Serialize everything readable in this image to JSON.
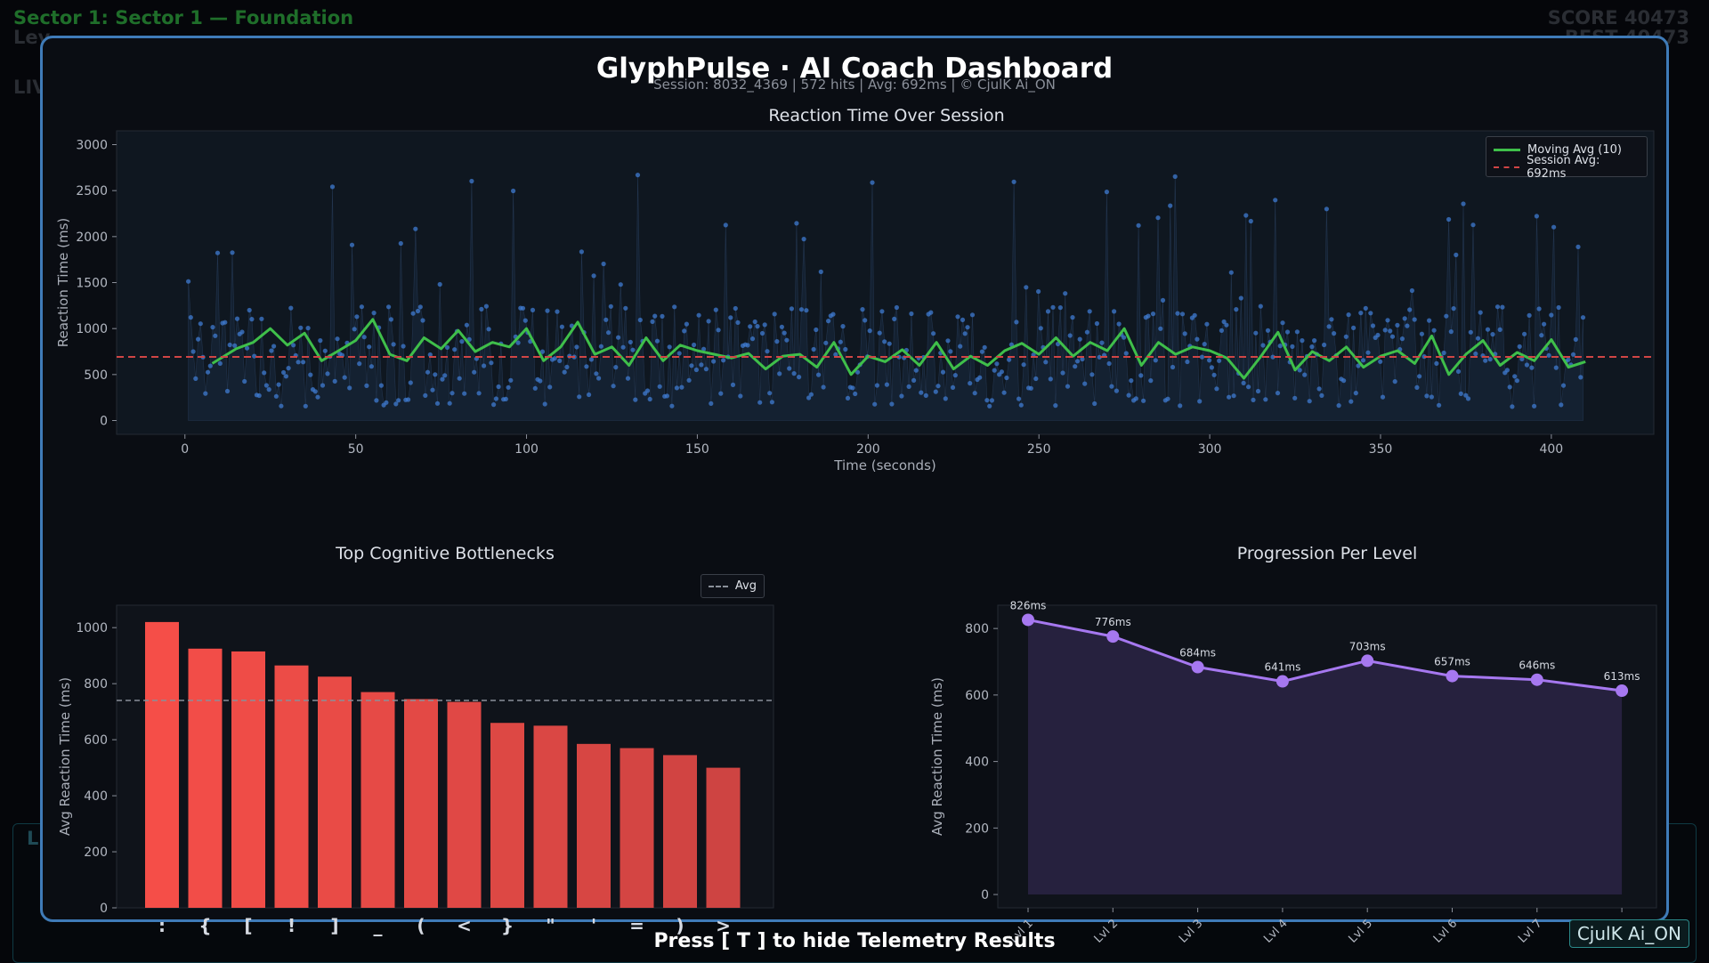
{
  "background": {
    "sector_title": "Sector 1: Sector 1 — Foundation",
    "score": "SCORE 40473",
    "best": "BEST 40473"
  },
  "dashboard": {
    "title": "GlyphPulse · AI Coach Dashboard",
    "subtitle": "Session: 8032_4369  |  572 hits  |  Avg: 692ms  |  © CjulK Ai_ON"
  },
  "colors": {
    "moving_avg": "#3fbf4a",
    "session_avg": "#d04545",
    "scatter": "#3f7bd0",
    "bars": "#e04a44",
    "progression": "#a678f0",
    "modal_border": "#3f7bb8"
  },
  "chart_data": [
    {
      "type": "scatter",
      "title": "Reaction Time Over Session",
      "xlabel": "Time (seconds)",
      "ylabel": "Reaction Time (ms)",
      "xlim": [
        -20,
        430
      ],
      "ylim": [
        -150,
        3150
      ],
      "xticks": [
        0,
        50,
        100,
        150,
        200,
        250,
        300,
        350,
        400
      ],
      "yticks": [
        0,
        500,
        1000,
        1500,
        2000,
        2500,
        3000
      ],
      "legend": "top-right",
      "hits": 572,
      "session_avg_ms": 692,
      "series": [
        {
          "name": "Moving Avg (10)",
          "kind": "line",
          "x": [
            8,
            15,
            20,
            25,
            30,
            35,
            40,
            45,
            50,
            55,
            60,
            65,
            70,
            75,
            80,
            85,
            90,
            95,
            100,
            105,
            110,
            115,
            120,
            125,
            130,
            135,
            140,
            145,
            150,
            155,
            160,
            165,
            170,
            175,
            180,
            185,
            190,
            195,
            200,
            205,
            210,
            215,
            220,
            225,
            230,
            235,
            240,
            245,
            250,
            255,
            260,
            265,
            270,
            275,
            280,
            285,
            290,
            295,
            300,
            305,
            310,
            315,
            320,
            325,
            330,
            335,
            340,
            345,
            350,
            355,
            360,
            365,
            370,
            375,
            380,
            385,
            390,
            395,
            400,
            405,
            410
          ],
          "y": [
            620,
            780,
            850,
            1000,
            820,
            950,
            650,
            760,
            870,
            1100,
            720,
            650,
            900,
            780,
            980,
            750,
            850,
            800,
            1000,
            650,
            800,
            1070,
            720,
            800,
            600,
            900,
            650,
            820,
            760,
            720,
            680,
            730,
            560,
            700,
            720,
            580,
            850,
            500,
            700,
            640,
            770,
            600,
            850,
            560,
            700,
            600,
            760,
            840,
            720,
            900,
            700,
            850,
            760,
            1000,
            600,
            850,
            720,
            800,
            760,
            680,
            460,
            700,
            960,
            550,
            750,
            650,
            800,
            580,
            700,
            760,
            620,
            920,
            500,
            720,
            870,
            600,
            740,
            650,
            880,
            580,
            640
          ]
        },
        {
          "name": "Session Avg: 692ms",
          "kind": "hline",
          "y": 692
        }
      ],
      "points_summary": "572 scatter points between 0 and 410 s, mostly 100–1300 ms with spikes up to ~3000 ms"
    },
    {
      "type": "bar",
      "title": "Top Cognitive Bottlenecks",
      "xlabel": "",
      "ylabel": "Avg Reaction Time (ms)",
      "categories": [
        ":",
        "{",
        "[",
        "!",
        "]",
        "_",
        "(",
        "<",
        "}",
        "\"",
        "'",
        "=",
        ")",
        ">"
      ],
      "values": [
        1020,
        925,
        915,
        865,
        825,
        770,
        745,
        735,
        660,
        650,
        585,
        570,
        545,
        500
      ],
      "avg_line": 740,
      "legend": [
        "Avg"
      ],
      "ylim": [
        0,
        1080
      ],
      "yticks": [
        0,
        200,
        400,
        600,
        800,
        1000
      ]
    },
    {
      "type": "area",
      "title": "Progression Per Level",
      "xlabel": "",
      "ylabel": "Avg Reaction Time (ms)",
      "categories": [
        "Lvl 1",
        "Lvl 2",
        "Lvl 3",
        "Lvl 4",
        "Lvl 5",
        "Lvl 6",
        "Lvl 7",
        "Lvl 8"
      ],
      "values": [
        826,
        776,
        684,
        641,
        703,
        657,
        646,
        613
      ],
      "labels": [
        "826ms",
        "776ms",
        "684ms",
        "641ms",
        "703ms",
        "657ms",
        "646ms",
        "613ms"
      ],
      "ylim": [
        -40,
        870
      ],
      "yticks": [
        0,
        200,
        400,
        600,
        800
      ]
    }
  ],
  "footer": {
    "hint": "Press [ T ] to hide Telemetry Results",
    "watermark": "CjulK Ai_ON"
  }
}
